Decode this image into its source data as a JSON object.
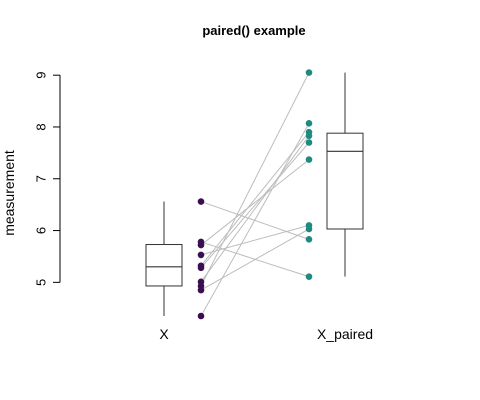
{
  "chart_data": {
    "type": "boxplot",
    "title": "paired() example",
    "ylabel": "measurement",
    "xlabel": "",
    "categories": [
      "X",
      "X_paired"
    ],
    "ylim": [
      4.35,
      9.1
    ],
    "yticks": [
      5,
      6,
      7,
      8,
      9
    ],
    "grid": false,
    "legend": "none",
    "series": [
      {
        "values": [
          4.93,
          5.32,
          5.28,
          4.35,
          5.01,
          5.53,
          6.56,
          5.72,
          4.85,
          5.78
        ],
        "color": "#3b0f4f",
        "box": {
          "min": 4.35,
          "q1": 4.93,
          "median": 5.3,
          "q3": 5.73,
          "max": 6.56
        }
      },
      {
        "values": [
          9.05,
          7.9,
          7.7,
          8.07,
          7.83,
          6.1,
          5.83,
          7.37,
          6.03,
          5.11
        ],
        "color": "#1f8a80",
        "box": {
          "min": 5.11,
          "q1": 6.03,
          "median": 7.53,
          "q3": 7.88,
          "max": 9.05
        }
      }
    ],
    "pair_line_color": "#bdbdbd"
  }
}
